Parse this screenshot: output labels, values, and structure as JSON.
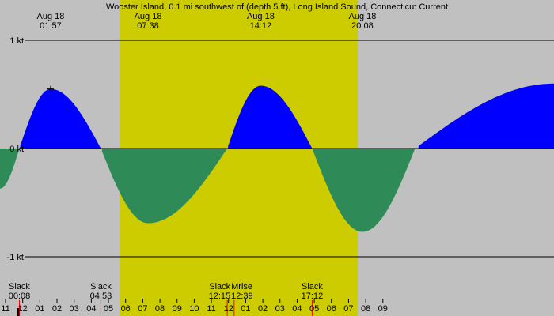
{
  "chart_data": {
    "type": "area",
    "title": "Wooster Island, 0.1 mi southwest of (depth 5 ft), Long Island Sound, Connecticut Current",
    "ylabel_unit": "kt",
    "ylim": [
      -1,
      1
    ],
    "y_ticks": [
      {
        "value": 1,
        "label": "1 kt"
      },
      {
        "value": 0,
        "label": "0 kt"
      },
      {
        "value": -1,
        "label": "-1 kt"
      }
    ],
    "x_range_hours": [
      -1.0,
      31.3
    ],
    "daylight": {
      "start_hour": 6.0,
      "end_hour": 19.85
    },
    "peaks": [
      {
        "date": "Aug 18",
        "time": "01:57",
        "hour": 1.95,
        "value": 0.55
      },
      {
        "date": "Aug 18",
        "time": "07:38",
        "hour": 7.63,
        "value": -0.69
      },
      {
        "date": "Aug 18",
        "time": "14:12",
        "hour": 14.2,
        "value": 0.58
      },
      {
        "date": "Aug 18",
        "time": "20:08",
        "hour": 20.13,
        "value": -0.77
      }
    ],
    "events": [
      {
        "label": "Slack",
        "time": "00:08",
        "hour": 0.13
      },
      {
        "label": "Slack",
        "time": "04:53",
        "hour": 4.88
      },
      {
        "label": "Slack",
        "time": "12:15",
        "hour": 12.25
      },
      {
        "label": "Mrise",
        "time": "12:39",
        "hour": 12.65
      },
      {
        "label": "Slack",
        "time": "17:12",
        "hour": 17.2
      }
    ],
    "series": [
      {
        "x": [
          -1.0,
          0.13,
          1.95,
          4.88,
          7.63,
          12.25,
          14.2,
          17.2,
          20.13,
          23.2,
          31.3
        ],
        "values": [
          -0.37,
          0.0,
          0.55,
          0.0,
          -0.69,
          0.0,
          0.58,
          0.0,
          -0.77,
          0.0,
          0.6
        ]
      }
    ],
    "x_tick_labels": [
      "11",
      "12",
      "01",
      "02",
      "03",
      "04",
      "05",
      "06",
      "07",
      "08",
      "09",
      "10",
      "11",
      "12",
      "01",
      "02",
      "03",
      "04",
      "05",
      "06",
      "07",
      "08",
      "09"
    ],
    "x_tick_start_hour": -1,
    "colors": {
      "background": "#c0c0c0",
      "daylight": "#cccc00",
      "flood": "#0000ff",
      "ebb": "#2e8b57",
      "grid": "#000000",
      "marker_event": "#ff0000",
      "marker_midnight": "#000000"
    }
  }
}
